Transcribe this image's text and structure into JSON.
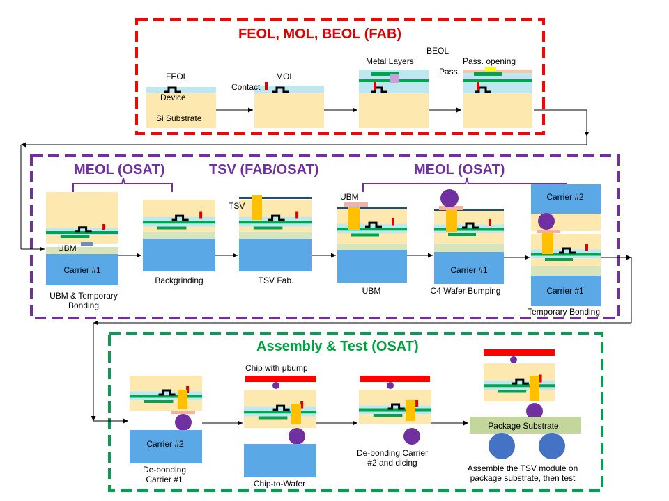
{
  "colors": {
    "fab_box": "#ff0000",
    "meol_box": "#7030a0",
    "assembly_box": "#00a050",
    "substrate": "#fde9b0",
    "carrier": "#5aa9e6",
    "green_layer": "#00a550",
    "tsv": "#ffc000",
    "bump": "#7030a0",
    "chip_top": "#ff0000",
    "package": "#c4d79b",
    "ball": "#4472c4"
  },
  "sections": {
    "fab": "FEOL, MOL, BEOL (FAB)",
    "meol_left": "MEOL (OSAT)",
    "tsv": "TSV (FAB/OSAT)",
    "meol_right": "MEOL (OSAT)",
    "assembly": "Assembly & Test (OSAT)"
  },
  "fab_row": {
    "feol": "FEOL",
    "device": "Device",
    "si_substrate": "Si Substrate",
    "contact": "Contact",
    "mol": "MOL",
    "metal_layers": "Metal Layers",
    "beol": "BEOL",
    "pass": "Pass.",
    "pass_opening": "Pass. opening"
  },
  "meol_row": {
    "ubm_tag": "UBM",
    "carrier1": "Carrier #1",
    "step1": "UBM & Temporary Bonding",
    "step2": "Backgrinding",
    "tsv_tag": "TSV",
    "step3": "TSV Fab.",
    "ubm_tag2": "UBM",
    "step4": "UBM",
    "carrier1_b": "Carrier #1",
    "step5": "C4 Wafer Bumping",
    "carrier2": "Carrier #2",
    "carrier1_c": "Carrier #1",
    "step6": "Temporary Bonding"
  },
  "assembly_row": {
    "carrier2": "Carrier #2",
    "step1": "De-bonding Carrier #1",
    "chip_label": "Chip with μbump",
    "step2": "Chip-to-Wafer",
    "step3": "De-bonding Carrier #2 and dicing",
    "package_substrate": "Package Substrate",
    "step4": "Assemble the TSV module on package substrate, then test"
  }
}
